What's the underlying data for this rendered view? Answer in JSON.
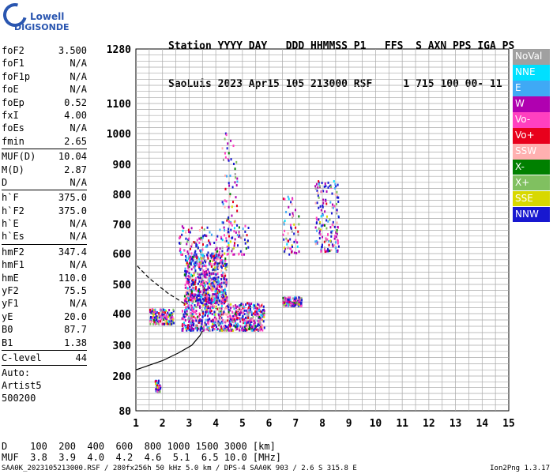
{
  "logo": {
    "line1": "Lowell",
    "line2": "DIGISONDE"
  },
  "header": {
    "line1": "Station YYYY DAY   DDD HHMMSS P1   FFS  S AXN PPS IGA PS",
    "line2": "SaoLuis 2023 Apr15 105 213000 RSF     1 715 100 00- 11"
  },
  "params": [
    {
      "group": [
        {
          "name": "foF2",
          "value": "3.500"
        },
        {
          "name": "foF1",
          "value": "N/A"
        },
        {
          "name": "foF1p",
          "value": "N/A"
        },
        {
          "name": "foE",
          "value": "N/A"
        },
        {
          "name": "foEp",
          "value": "0.52"
        },
        {
          "name": "fxI",
          "value": "4.00"
        },
        {
          "name": "foEs",
          "value": "N/A"
        },
        {
          "name": "fmin",
          "value": "2.65"
        }
      ]
    },
    {
      "group": [
        {
          "name": "MUF(D)",
          "value": "10.04"
        },
        {
          "name": "M(D)",
          "value": "2.87"
        },
        {
          "name": "D",
          "value": "N/A"
        }
      ]
    },
    {
      "group": [
        {
          "name": "h`F",
          "value": "375.0"
        },
        {
          "name": "h`F2",
          "value": "375.0"
        },
        {
          "name": "h`E",
          "value": "N/A"
        },
        {
          "name": "h`Es",
          "value": "N/A"
        }
      ]
    },
    {
      "group": [
        {
          "name": "hmF2",
          "value": "347.4"
        },
        {
          "name": "hmF1",
          "value": "N/A"
        },
        {
          "name": "hmE",
          "value": "110.0"
        },
        {
          "name": "yF2",
          "value": "75.5"
        },
        {
          "name": "yF1",
          "value": "N/A"
        },
        {
          "name": "yE",
          "value": "20.0"
        },
        {
          "name": "B0",
          "value": "87.7"
        },
        {
          "name": "B1",
          "value": "1.38"
        }
      ]
    },
    {
      "group": [
        {
          "name": "C-level",
          "value": "44"
        }
      ]
    }
  ],
  "auto": [
    "Auto:",
    "Artist5",
    "500200"
  ],
  "legend": [
    {
      "label": "NoVal",
      "color": "#a0a0a0"
    },
    {
      "label": "NNE",
      "color": "#00e0ff"
    },
    {
      "label": "E",
      "color": "#3fa9f5"
    },
    {
      "label": "W",
      "color": "#b000b0"
    },
    {
      "label": "Vo-",
      "color": "#ff40c0"
    },
    {
      "label": "Vo+",
      "color": "#e8001c"
    },
    {
      "label": "SSW",
      "color": "#ffb0b0"
    },
    {
      "label": "X-",
      "color": "#008000"
    },
    {
      "label": "X+",
      "color": "#80c060"
    },
    {
      "label": "SSE",
      "color": "#d8d800"
    },
    {
      "label": "NNW",
      "color": "#1818d0"
    }
  ],
  "chart_data": {
    "type": "scatter",
    "title": "",
    "xlabel": "",
    "ylabel": "",
    "xlim": [
      1,
      15
    ],
    "ylim": [
      80,
      1280
    ],
    "x_ticks": [
      "1",
      "2",
      "3",
      "4",
      "5",
      "6",
      "7",
      "8",
      "9",
      "10",
      "11",
      "12",
      "13",
      "14",
      "15"
    ],
    "y_ticks": [
      "80",
      "200",
      "300",
      "400",
      "500",
      "600",
      "700",
      "800",
      "900",
      "1000",
      "1100",
      "1280"
    ],
    "grid": true,
    "y_scale": "virtual height (nonlinear)",
    "echo_clusters": [
      {
        "x_range": [
          2.7,
          5.8
        ],
        "y_range": [
          350,
          440
        ],
        "density": "high"
      },
      {
        "x_range": [
          2.8,
          4.4
        ],
        "y_range": [
          440,
          600
        ],
        "density": "high"
      },
      {
        "x_range": [
          2.6,
          5.2
        ],
        "y_range": [
          600,
          700
        ],
        "density": "medium"
      },
      {
        "x_range": [
          4.2,
          4.8
        ],
        "y_range": [
          700,
          1010
        ],
        "density": "low"
      },
      {
        "x_range": [
          1.5,
          2.4
        ],
        "y_range": [
          370,
          420
        ],
        "density": "medium"
      },
      {
        "x_range": [
          6.5,
          7.2
        ],
        "y_range": [
          430,
          460
        ],
        "density": "medium"
      },
      {
        "x_range": [
          6.5,
          7.1
        ],
        "y_range": [
          600,
          800
        ],
        "density": "low"
      },
      {
        "x_range": [
          7.7,
          8.6
        ],
        "y_range": [
          610,
          850
        ],
        "density": "medium"
      },
      {
        "x_range": [
          1.7,
          1.9
        ],
        "y_range": [
          150,
          190
        ],
        "density": "low"
      }
    ],
    "traces": [
      {
        "name": "profile",
        "x": [
          1,
          2,
          2.6,
          3.1,
          3.4,
          3.5
        ],
        "y": [
          220,
          250,
          275,
          300,
          330,
          345
        ]
      },
      {
        "name": "muf-dashed",
        "x": [
          1.05,
          1.5,
          2.2,
          2.9
        ],
        "y": [
          560,
          520,
          470,
          430
        ]
      }
    ]
  },
  "dmuf": {
    "d_label": "D",
    "d_values": "100  200  400  600  800 1000 1500 3000 [km]",
    "muf_label": "MUF",
    "muf_values": "3.8  3.9  4.0  4.2  4.6  5.1  6.5 10.0 [MHz]"
  },
  "footer": "SAA0K_2023105213000.RSF / 280fx256h 50 kHz 5.0 km / DPS-4 SAA0K 903 / 2.6 S 315.8 E",
  "version": "Ion2Png 1.3.17"
}
